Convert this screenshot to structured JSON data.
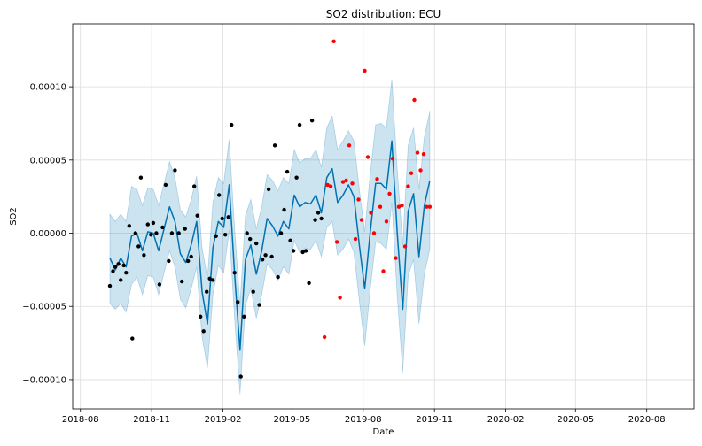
{
  "chart_data": {
    "type": "scatter",
    "title": "SO2 distribution: ECU",
    "xlabel": "Date",
    "ylabel": "SO2",
    "x_ticks": [
      "2018-08",
      "2018-11",
      "2019-02",
      "2019-05",
      "2019-08",
      "2019-11",
      "2020-02",
      "2020-05",
      "2020-08"
    ],
    "y_ticks": [
      "−0.00010",
      "−0.00005",
      "0.00000",
      "0.00005",
      "0.00010"
    ],
    "xlim": [
      "2018-07-22",
      "2020-10-01"
    ],
    "ylim": [
      -0.00012,
      0.000143
    ],
    "grid": true,
    "colors": {
      "observed": "#000000",
      "test": "#ff0000",
      "forecast_line": "#0072B2",
      "interval_fill": "#0072B2",
      "grid": "#dddddd"
    },
    "series": [
      {
        "role": "observed",
        "points": [
          {
            "x": "2018-09-08",
            "y": -3.6e-05
          },
          {
            "x": "2018-09-12",
            "y": -2.6e-05
          },
          {
            "x": "2018-09-15",
            "y": -2.3e-05
          },
          {
            "x": "2018-09-19",
            "y": -2.1e-05
          },
          {
            "x": "2018-09-22",
            "y": -3.2e-05
          },
          {
            "x": "2018-09-26",
            "y": -2.2e-05
          },
          {
            "x": "2018-09-29",
            "y": -2.7e-05
          },
          {
            "x": "2018-10-03",
            "y": 5e-06
          },
          {
            "x": "2018-10-07",
            "y": -7.2e-05
          },
          {
            "x": "2018-10-11",
            "y": 0.0
          },
          {
            "x": "2018-10-15",
            "y": -9e-06
          },
          {
            "x": "2018-10-18",
            "y": 3.8e-05
          },
          {
            "x": "2018-10-22",
            "y": -1.5e-05
          },
          {
            "x": "2018-10-27",
            "y": 6e-06
          },
          {
            "x": "2018-10-31",
            "y": -1e-06
          },
          {
            "x": "2018-11-03",
            "y": 7e-06
          },
          {
            "x": "2018-11-07",
            "y": 0.0
          },
          {
            "x": "2018-11-11",
            "y": -3.5e-05
          },
          {
            "x": "2018-11-15",
            "y": 4e-06
          },
          {
            "x": "2018-11-19",
            "y": 3.3e-05
          },
          {
            "x": "2018-11-23",
            "y": -1.9e-05
          },
          {
            "x": "2018-11-27",
            "y": 0.0
          },
          {
            "x": "2018-12-01",
            "y": 4.3e-05
          },
          {
            "x": "2018-12-06",
            "y": 0.0
          },
          {
            "x": "2018-12-10",
            "y": -3.3e-05
          },
          {
            "x": "2018-12-14",
            "y": 3e-06
          },
          {
            "x": "2018-12-18",
            "y": -1.9e-05
          },
          {
            "x": "2018-12-22",
            "y": -1.6e-05
          },
          {
            "x": "2018-12-26",
            "y": 3.2e-05
          },
          {
            "x": "2018-12-30",
            "y": 1.2e-05
          },
          {
            "x": "2019-01-03",
            "y": -5.7e-05
          },
          {
            "x": "2019-01-07",
            "y": -6.7e-05
          },
          {
            "x": "2019-01-11",
            "y": -4e-05
          },
          {
            "x": "2019-01-15",
            "y": -3.1e-05
          },
          {
            "x": "2019-01-19",
            "y": -3.2e-05
          },
          {
            "x": "2019-01-23",
            "y": -2e-06
          },
          {
            "x": "2019-01-27",
            "y": 2.6e-05
          },
          {
            "x": "2019-01-31",
            "y": 1e-05
          },
          {
            "x": "2019-02-04",
            "y": -1e-06
          },
          {
            "x": "2019-02-08",
            "y": 1.1e-05
          },
          {
            "x": "2019-02-12",
            "y": 7.4e-05
          },
          {
            "x": "2019-02-16",
            "y": -2.7e-05
          },
          {
            "x": "2019-02-20",
            "y": -4.7e-05
          },
          {
            "x": "2019-02-24",
            "y": -9.8e-05
          },
          {
            "x": "2019-02-28",
            "y": -5.7e-05
          },
          {
            "x": "2019-03-04",
            "y": 0.0
          },
          {
            "x": "2019-03-08",
            "y": -4e-06
          },
          {
            "x": "2019-03-12",
            "y": -4e-05
          },
          {
            "x": "2019-03-16",
            "y": -7e-06
          },
          {
            "x": "2019-03-20",
            "y": -4.9e-05
          },
          {
            "x": "2019-03-24",
            "y": -1.8e-05
          },
          {
            "x": "2019-03-28",
            "y": -1.5e-05
          },
          {
            "x": "2019-04-01",
            "y": 3e-05
          },
          {
            "x": "2019-04-05",
            "y": -1.6e-05
          },
          {
            "x": "2019-04-09",
            "y": 6e-05
          },
          {
            "x": "2019-04-13",
            "y": -3e-05
          },
          {
            "x": "2019-04-17",
            "y": 0.0
          },
          {
            "x": "2019-04-21",
            "y": 1.6e-05
          },
          {
            "x": "2019-04-25",
            "y": 4.2e-05
          },
          {
            "x": "2019-04-29",
            "y": -5e-06
          },
          {
            "x": "2019-05-03",
            "y": -1.2e-05
          },
          {
            "x": "2019-05-07",
            "y": 3.8e-05
          },
          {
            "x": "2019-05-11",
            "y": 7.4e-05
          },
          {
            "x": "2019-05-15",
            "y": -1.3e-05
          },
          {
            "x": "2019-05-19",
            "y": -1.2e-05
          },
          {
            "x": "2019-05-23",
            "y": -3.4e-05
          },
          {
            "x": "2019-05-27",
            "y": 7.7e-05
          },
          {
            "x": "2019-05-31",
            "y": 9e-06
          },
          {
            "x": "2019-06-04",
            "y": 1.4e-05
          },
          {
            "x": "2019-06-08",
            "y": 1e-05
          }
        ]
      },
      {
        "role": "test",
        "points": [
          {
            "x": "2019-06-12",
            "y": -7.1e-05
          },
          {
            "x": "2019-06-16",
            "y": 3.3e-05
          },
          {
            "x": "2019-06-20",
            "y": 3.2e-05
          },
          {
            "x": "2019-06-24",
            "y": 0.000131
          },
          {
            "x": "2019-06-28",
            "y": -6e-06
          },
          {
            "x": "2019-07-02",
            "y": -4.4e-05
          },
          {
            "x": "2019-07-06",
            "y": 3.5e-05
          },
          {
            "x": "2019-07-10",
            "y": 3.6e-05
          },
          {
            "x": "2019-07-14",
            "y": 6e-05
          },
          {
            "x": "2019-07-18",
            "y": 3.4e-05
          },
          {
            "x": "2019-07-22",
            "y": -4e-06
          },
          {
            "x": "2019-07-26",
            "y": 2.3e-05
          },
          {
            "x": "2019-07-30",
            "y": 9e-06
          },
          {
            "x": "2019-08-03",
            "y": 0.000111
          },
          {
            "x": "2019-08-07",
            "y": 5.2e-05
          },
          {
            "x": "2019-08-11",
            "y": 1.4e-05
          },
          {
            "x": "2019-08-15",
            "y": 0.0
          },
          {
            "x": "2019-08-19",
            "y": 3.7e-05
          },
          {
            "x": "2019-08-23",
            "y": 1.8e-05
          },
          {
            "x": "2019-08-27",
            "y": -2.6e-05
          },
          {
            "x": "2019-08-31",
            "y": 8e-06
          },
          {
            "x": "2019-09-04",
            "y": 2.7e-05
          },
          {
            "x": "2019-09-08",
            "y": 5.1e-05
          },
          {
            "x": "2019-09-12",
            "y": -1.7e-05
          },
          {
            "x": "2019-09-16",
            "y": 1.8e-05
          },
          {
            "x": "2019-09-20",
            "y": 1.9e-05
          },
          {
            "x": "2019-09-24",
            "y": -9e-06
          },
          {
            "x": "2019-09-28",
            "y": 3.2e-05
          },
          {
            "x": "2019-10-02",
            "y": 4.1e-05
          },
          {
            "x": "2019-10-06",
            "y": 9.1e-05
          },
          {
            "x": "2019-10-10",
            "y": 5.5e-05
          },
          {
            "x": "2019-10-14",
            "y": 4.3e-05
          },
          {
            "x": "2019-10-18",
            "y": 5.4e-05
          },
          {
            "x": "2019-10-22",
            "y": 1.8e-05
          },
          {
            "x": "2019-10-26",
            "y": 1.8e-05
          }
        ]
      },
      {
        "role": "forecast",
        "points": [
          {
            "x": "2018-09-08",
            "y": -1.7e-05,
            "lower": -4.8e-05,
            "upper": 1.3e-05
          },
          {
            "x": "2018-09-15",
            "y": -2.5e-05,
            "lower": -5.2e-05,
            "upper": 8e-06
          },
          {
            "x": "2018-09-22",
            "y": -1.7e-05,
            "lower": -4.8e-05,
            "upper": 1.3e-05
          },
          {
            "x": "2018-09-29",
            "y": -2.3e-05,
            "lower": -5.4e-05,
            "upper": 8e-06
          },
          {
            "x": "2018-10-06",
            "y": -2e-06,
            "lower": -3.5e-05,
            "upper": 3.2e-05
          },
          {
            "x": "2018-10-13",
            "y": 0.0,
            "lower": -3e-05,
            "upper": 3e-05
          },
          {
            "x": "2018-10-20",
            "y": -1.2e-05,
            "lower": -4.2e-05,
            "upper": 1.9e-05
          },
          {
            "x": "2018-10-27",
            "y": 1e-06,
            "lower": -2.9e-05,
            "upper": 3.1e-05
          },
          {
            "x": "2018-11-03",
            "y": 0.0,
            "lower": -3e-05,
            "upper": 3e-05
          },
          {
            "x": "2018-11-10",
            "y": -1.2e-05,
            "lower": -4.2e-05,
            "upper": 1.9e-05
          },
          {
            "x": "2018-11-17",
            "y": 3e-06,
            "lower": -2.7e-05,
            "upper": 3.4e-05
          },
          {
            "x": "2018-11-24",
            "y": 1.8e-05,
            "lower": -1.2e-05,
            "upper": 4.9e-05
          },
          {
            "x": "2018-12-01",
            "y": 8e-06,
            "lower": -2.3e-05,
            "upper": 3.8e-05
          },
          {
            "x": "2018-12-08",
            "y": -1.4e-05,
            "lower": -4.5e-05,
            "upper": 1.6e-05
          },
          {
            "x": "2018-12-15",
            "y": -2e-05,
            "lower": -5.1e-05,
            "upper": 1.1e-05
          },
          {
            "x": "2018-12-22",
            "y": -8e-06,
            "lower": -3.8e-05,
            "upper": 2.3e-05
          },
          {
            "x": "2018-12-29",
            "y": 8e-06,
            "lower": -2.3e-05,
            "upper": 3.9e-05
          },
          {
            "x": "2019-01-05",
            "y": -4e-05,
            "lower": -7.1e-05,
            "upper": -1e-05
          },
          {
            "x": "2019-01-12",
            "y": -6.2e-05,
            "lower": -9.2e-05,
            "upper": -3.1e-05
          },
          {
            "x": "2019-01-19",
            "y": -1e-05,
            "lower": -4.2e-05,
            "upper": 2.1e-05
          },
          {
            "x": "2019-01-26",
            "y": 8e-06,
            "lower": -2.2e-05,
            "upper": 3.8e-05
          },
          {
            "x": "2019-02-02",
            "y": 4e-06,
            "lower": -2.7e-05,
            "upper": 3.4e-05
          },
          {
            "x": "2019-02-09",
            "y": 3.3e-05,
            "lower": 2e-06,
            "upper": 6.4e-05
          },
          {
            "x": "2019-02-16",
            "y": -2.8e-05,
            "lower": -5.8e-05,
            "upper": 3e-06
          },
          {
            "x": "2019-02-23",
            "y": -8e-05,
            "lower": -0.00011,
            "upper": -4.9e-05
          },
          {
            "x": "2019-03-02",
            "y": -1.8e-05,
            "lower": -4.9e-05,
            "upper": 1.2e-05
          },
          {
            "x": "2019-03-09",
            "y": -8e-06,
            "lower": -3.8e-05,
            "upper": 2.3e-05
          },
          {
            "x": "2019-03-16",
            "y": -2.8e-05,
            "lower": -5.8e-05,
            "upper": 3e-06
          },
          {
            "x": "2019-03-23",
            "y": -1.2e-05,
            "lower": -4.2e-05,
            "upper": 1.8e-05
          },
          {
            "x": "2019-03-30",
            "y": 1e-05,
            "lower": -2.1e-05,
            "upper": 4e-05
          },
          {
            "x": "2019-04-06",
            "y": 5e-06,
            "lower": -2.5e-05,
            "upper": 3.6e-05
          },
          {
            "x": "2019-04-13",
            "y": -2e-06,
            "lower": -3.2e-05,
            "upper": 2.9e-05
          },
          {
            "x": "2019-04-20",
            "y": 8e-06,
            "lower": -2.3e-05,
            "upper": 3.8e-05
          },
          {
            "x": "2019-04-27",
            "y": 3e-06,
            "lower": -2.8e-05,
            "upper": 3.4e-05
          },
          {
            "x": "2019-05-04",
            "y": 2.6e-05,
            "lower": -5e-06,
            "upper": 5.7e-05
          },
          {
            "x": "2019-05-11",
            "y": 1.8e-05,
            "lower": -1.3e-05,
            "upper": 4.8e-05
          },
          {
            "x": "2019-05-18",
            "y": 2.1e-05,
            "lower": -1e-05,
            "upper": 5.1e-05
          },
          {
            "x": "2019-05-25",
            "y": 2e-05,
            "lower": -1.1e-05,
            "upper": 5.1e-05
          },
          {
            "x": "2019-06-01",
            "y": 2.6e-05,
            "lower": -5e-06,
            "upper": 5.7e-05
          },
          {
            "x": "2019-06-08",
            "y": 1.4e-05,
            "lower": -1.6e-05,
            "upper": 4.5e-05
          },
          {
            "x": "2019-06-15",
            "y": 3.8e-05,
            "lower": 4e-06,
            "upper": 7.2e-05
          },
          {
            "x": "2019-06-22",
            "y": 4.4e-05,
            "lower": 8e-06,
            "upper": 8e-05
          },
          {
            "x": "2019-06-29",
            "y": 2.1e-05,
            "lower": -1.5e-05,
            "upper": 5.7e-05
          },
          {
            "x": "2019-07-06",
            "y": 2.6e-05,
            "lower": -1.1e-05,
            "upper": 6.3e-05
          },
          {
            "x": "2019-07-13",
            "y": 3.3e-05,
            "lower": -4e-06,
            "upper": 7e-05
          },
          {
            "x": "2019-07-20",
            "y": 2.5e-05,
            "lower": -1.3e-05,
            "upper": 6.3e-05
          },
          {
            "x": "2019-07-27",
            "y": -8e-06,
            "lower": -4.6e-05,
            "upper": 3e-05
          },
          {
            "x": "2019-08-03",
            "y": -3.8e-05,
            "lower": -7.7e-05,
            "upper": 1e-06
          },
          {
            "x": "2019-08-10",
            "y": 0.0,
            "lower": -3.9e-05,
            "upper": 4e-05
          },
          {
            "x": "2019-08-17",
            "y": 3.4e-05,
            "lower": -6e-06,
            "upper": 7.4e-05
          },
          {
            "x": "2019-08-24",
            "y": 3.4e-05,
            "lower": -7e-06,
            "upper": 7.5e-05
          },
          {
            "x": "2019-08-31",
            "y": 3e-05,
            "lower": -1.1e-05,
            "upper": 7.2e-05
          },
          {
            "x": "2019-09-07",
            "y": 6.3e-05,
            "lower": 2.1e-05,
            "upper": 0.000105
          },
          {
            "x": "2019-09-14",
            "y": 0.0,
            "lower": -4.3e-05,
            "upper": 4.3e-05
          },
          {
            "x": "2019-09-21",
            "y": -5.2e-05,
            "lower": -9.5e-05,
            "upper": -8e-06
          },
          {
            "x": "2019-09-28",
            "y": 1.5e-05,
            "lower": -2.9e-05,
            "upper": 6e-05
          },
          {
            "x": "2019-10-05",
            "y": 2.7e-05,
            "lower": -1.8e-05,
            "upper": 7.2e-05
          },
          {
            "x": "2019-10-12",
            "y": -1.6e-05,
            "lower": -6.2e-05,
            "upper": 3e-05
          },
          {
            "x": "2019-10-19",
            "y": 1.9e-05,
            "lower": -2.8e-05,
            "upper": 6.6e-05
          },
          {
            "x": "2019-10-26",
            "y": 3.6e-05,
            "lower": -1.1e-05,
            "upper": 8.3e-05
          }
        ]
      }
    ]
  }
}
